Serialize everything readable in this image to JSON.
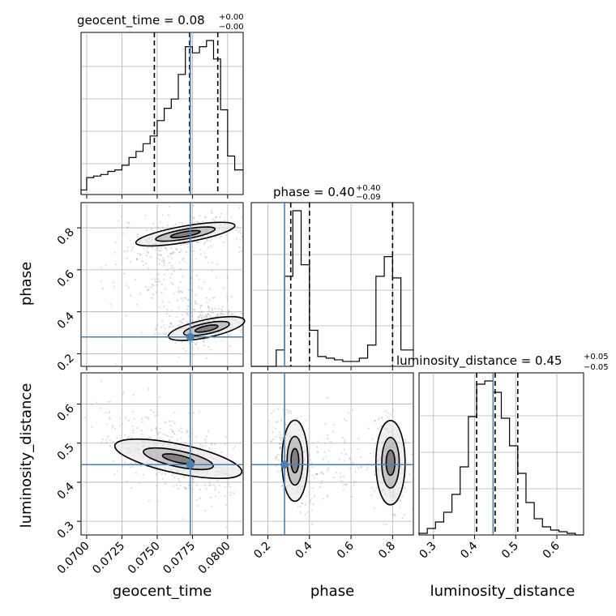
{
  "chart_data": {
    "type": "corner",
    "grid": true,
    "truth_color": "#4a7fb5",
    "parameters": [
      "geocent_time",
      "phase",
      "luminosity_distance"
    ],
    "truths": {
      "geocent_time": 0.07735,
      "phase": 0.28,
      "luminosity_distance": 0.445
    },
    "panels": {
      "geocent_time": {
        "title_main": "geocent_time = 0.08",
        "title_sup": "+0.00",
        "title_sub": "−0.00",
        "axis_label": "geocent_time",
        "xlim": [
          0.0696,
          0.0811
        ],
        "ticks": [
          "0.0700",
          "0.0725",
          "0.0750",
          "0.0775",
          "0.0800"
        ],
        "tick_values": [
          0.07,
          0.0725,
          0.075,
          0.0775,
          0.08
        ],
        "quantiles": [
          0.0748,
          0.0773,
          0.0793
        ],
        "hist_edges": [
          0.0696,
          0.07,
          0.0705,
          0.071,
          0.0715,
          0.072,
          0.0725,
          0.073,
          0.0735,
          0.074,
          0.0745,
          0.075,
          0.0755,
          0.076,
          0.0765,
          0.077,
          0.0775,
          0.078,
          0.0785,
          0.079,
          0.0795,
          0.08,
          0.0805,
          0.0811
        ],
        "hist_heights": [
          0.03,
          0.11,
          0.12,
          0.13,
          0.15,
          0.16,
          0.19,
          0.24,
          0.28,
          0.33,
          0.38,
          0.48,
          0.56,
          0.62,
          0.78,
          0.96,
          0.92,
          0.96,
          1.0,
          0.88,
          0.55,
          0.25,
          0.16
        ]
      },
      "phase": {
        "title_main": "phase = 0.40",
        "title_sup": "+0.40",
        "title_sub": "−0.09",
        "axis_label": "phase",
        "xlim": [
          0.12,
          0.9
        ],
        "ticks": [
          "0.2",
          "0.4",
          "0.6",
          "0.8"
        ],
        "tick_values": [
          0.2,
          0.4,
          0.6,
          0.8
        ],
        "quantiles": [
          0.31,
          0.4,
          0.8
        ],
        "hist_edges": [
          0.12,
          0.16,
          0.2,
          0.24,
          0.28,
          0.32,
          0.36,
          0.4,
          0.44,
          0.48,
          0.52,
          0.56,
          0.6,
          0.64,
          0.68,
          0.72,
          0.76,
          0.8,
          0.84,
          0.9
        ],
        "hist_heights": [
          0.0,
          0.0,
          0.0,
          0.1,
          0.55,
          0.95,
          0.62,
          0.22,
          0.06,
          0.05,
          0.04,
          0.03,
          0.03,
          0.05,
          0.13,
          0.55,
          0.67,
          0.54,
          0.1
        ]
      },
      "luminosity_distance": {
        "title_main": "luminosity_distance = 0.45",
        "title_sup": "+0.05",
        "title_sub": "−0.05",
        "axis_label": "luminosity_distance",
        "xlim": [
          0.265,
          0.665
        ],
        "ticks": [
          "0.3",
          "0.4",
          "0.5",
          "0.6"
        ],
        "tick_values": [
          0.3,
          0.4,
          0.5,
          0.6
        ],
        "quantiles": [
          0.405,
          0.45,
          0.505
        ],
        "hist_edges": [
          0.265,
          0.285,
          0.305,
          0.325,
          0.345,
          0.365,
          0.385,
          0.405,
          0.425,
          0.445,
          0.465,
          0.485,
          0.505,
          0.525,
          0.545,
          0.565,
          0.585,
          0.605,
          0.625,
          0.645,
          0.665
        ],
        "hist_heights": [
          0.01,
          0.04,
          0.08,
          0.14,
          0.25,
          0.42,
          0.73,
          0.93,
          0.95,
          0.88,
          0.72,
          0.55,
          0.38,
          0.2,
          0.1,
          0.05,
          0.03,
          0.02,
          0.01,
          0.0
        ]
      },
      "phase_vs_geocent": {
        "ylim": [
          0.14,
          0.92
        ],
        "yticks": [
          "0.2",
          "0.4",
          "0.6",
          "0.8"
        ],
        "ytick_values": [
          0.2,
          0.4,
          0.6,
          0.8
        ],
        "axis_label_y": "phase"
      },
      "dist_vs_geocent": {
        "ylim": [
          0.265,
          0.68
        ],
        "yticks": [
          "0.3",
          "0.4",
          "0.5",
          "0.6"
        ],
        "ytick_values": [
          0.3,
          0.4,
          0.5,
          0.6
        ],
        "axis_label_y": "luminosity_distance"
      }
    }
  }
}
